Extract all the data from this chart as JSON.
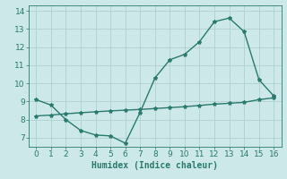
{
  "line1_x": [
    0,
    1,
    2,
    3,
    4,
    5,
    6,
    7,
    8,
    9,
    10,
    11,
    12,
    13,
    14,
    15,
    16
  ],
  "line1_y": [
    9.1,
    8.8,
    8.0,
    7.4,
    7.15,
    7.1,
    6.7,
    8.4,
    10.3,
    11.3,
    11.6,
    12.3,
    13.4,
    13.6,
    12.85,
    10.2,
    9.3
  ],
  "line2_x": [
    0,
    1,
    2,
    3,
    4,
    5,
    6,
    7,
    8,
    9,
    10,
    11,
    12,
    13,
    14,
    15,
    16
  ],
  "line2_y": [
    8.2,
    8.25,
    8.32,
    8.38,
    8.43,
    8.48,
    8.52,
    8.56,
    8.61,
    8.66,
    8.71,
    8.78,
    8.85,
    8.9,
    8.95,
    9.1,
    9.2
  ],
  "line_color": "#2a7a6e",
  "bg_color": "#cce8e8",
  "grid_color": "#b0d0d0",
  "xlabel": "Humidex (Indice chaleur)",
  "xlim": [
    -0.5,
    16.5
  ],
  "ylim": [
    6.5,
    14.3
  ],
  "yticks": [
    7,
    8,
    9,
    10,
    11,
    12,
    13,
    14
  ],
  "xticks": [
    0,
    1,
    2,
    3,
    4,
    5,
    6,
    7,
    8,
    9,
    10,
    11,
    12,
    13,
    14,
    15,
    16
  ],
  "marker": "*",
  "markersize": 3,
  "linewidth": 1.0,
  "xlabel_fontsize": 7,
  "tick_fontsize": 6.5
}
